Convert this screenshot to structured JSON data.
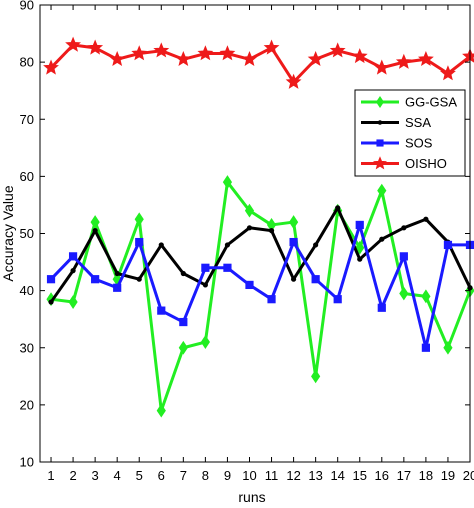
{
  "chart_data": {
    "type": "line",
    "title": "",
    "xlabel": "runs",
    "ylabel": "Accuracy Value",
    "x": [
      1,
      2,
      3,
      4,
      5,
      6,
      7,
      8,
      9,
      10,
      11,
      12,
      13,
      14,
      15,
      16,
      17,
      18,
      19,
      20
    ],
    "xlim": [
      0.5,
      20
    ],
    "ylim": [
      10,
      90
    ],
    "yticks": [
      10,
      20,
      30,
      40,
      50,
      60,
      70,
      80,
      90
    ],
    "grid": false,
    "legend_position": "right",
    "series": [
      {
        "name": "GG-GSA",
        "color": "#22ee22",
        "marker": "diamond",
        "values": [
          38.5,
          38,
          52,
          42,
          52.5,
          19,
          30,
          31,
          59,
          54,
          51.5,
          52,
          25,
          54,
          47.5,
          57.5,
          39.5,
          39,
          30,
          40
        ]
      },
      {
        "name": "SSA",
        "color": "#000000",
        "marker": "dot",
        "values": [
          38,
          43.5,
          50.5,
          43,
          42,
          48,
          43,
          41,
          48,
          51,
          50.5,
          42,
          48,
          54.5,
          45.5,
          49,
          51,
          52.5,
          48.5,
          40.5
        ]
      },
      {
        "name": "SOS",
        "color": "#1a1aff",
        "marker": "square",
        "values": [
          42,
          46,
          42,
          40.5,
          48.5,
          36.5,
          34.5,
          44,
          44,
          41,
          38.5,
          48.5,
          42,
          38.5,
          51.5,
          37,
          46,
          30,
          48,
          48
        ]
      },
      {
        "name": "OISHO",
        "color": "#ee1a1a",
        "marker": "star",
        "values": [
          79,
          83,
          82.5,
          80.5,
          81.5,
          82,
          80.5,
          81.5,
          81.5,
          80.5,
          82.5,
          76.5,
          80.5,
          82,
          81,
          79,
          80,
          80.5,
          78,
          81
        ]
      }
    ]
  }
}
